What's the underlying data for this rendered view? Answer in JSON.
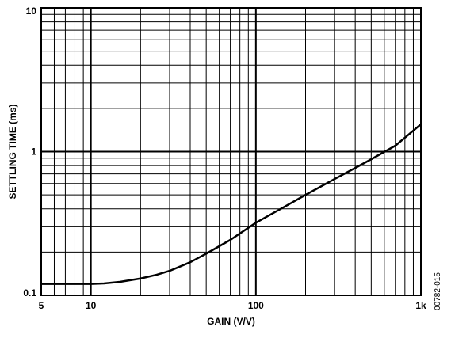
{
  "chart_data": {
    "type": "line",
    "title": "",
    "xlabel": "GAIN (V/V)",
    "ylabel": "SETTLING TIME (ms)",
    "x_scale": "log",
    "y_scale": "log",
    "xlim": [
      5,
      1000
    ],
    "ylim": [
      0.1,
      10
    ],
    "grid": true,
    "legend": "none",
    "x_ticks": [
      {
        "value": 5,
        "label": "5"
      },
      {
        "value": 10,
        "label": "10"
      },
      {
        "value": 100,
        "label": "100"
      },
      {
        "value": 1000,
        "label": "1k"
      }
    ],
    "y_ticks": [
      {
        "value": 0.1,
        "label": "0.1"
      },
      {
        "value": 1,
        "label": "1"
      },
      {
        "value": 10,
        "label": "10"
      }
    ],
    "series": [
      {
        "x": [
          5,
          7,
          10,
          12,
          15,
          20,
          25,
          30,
          40,
          50,
          70,
          100,
          150,
          200,
          300,
          400,
          500,
          700,
          1000
        ],
        "y": [
          0.12,
          0.12,
          0.12,
          0.121,
          0.124,
          0.131,
          0.139,
          0.148,
          0.17,
          0.195,
          0.243,
          0.32,
          0.415,
          0.5,
          0.645,
          0.77,
          0.885,
          1.1,
          1.55
        ],
        "color": "#000000"
      }
    ]
  },
  "figure_code": "00782-015"
}
